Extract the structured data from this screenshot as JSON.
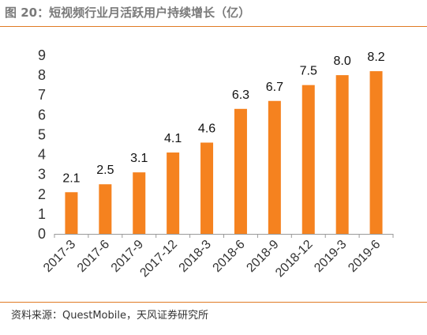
{
  "figure": {
    "title": "图 20：短视频行业月活跃用户持续增长（亿）",
    "source": "资料来源：QuestMobile，天风证券研究所"
  },
  "chart_data": {
    "type": "bar",
    "title": "图 20：短视频行业月活跃用户持续增长（亿）",
    "xlabel": "",
    "ylabel": "",
    "categories": [
      "2017-3",
      "2017-6",
      "2017-9",
      "2017-12",
      "2018-3",
      "2018-6",
      "2018-9",
      "2018-12",
      "2019-3",
      "2019-6"
    ],
    "values": [
      2.1,
      2.5,
      3.1,
      4.1,
      4.6,
      6.3,
      6.7,
      7.5,
      8.0,
      8.2
    ],
    "value_labels": [
      "2.1",
      "2.5",
      "3.1",
      "4.1",
      "4.6",
      "6.3",
      "6.7",
      "7.5",
      "8.0",
      "8.2"
    ],
    "ylim": [
      0,
      9
    ],
    "yticks": [
      "0",
      "1",
      "2",
      "3",
      "4",
      "5",
      "6",
      "7",
      "8",
      "9"
    ],
    "grid": false,
    "legend": "none",
    "bar_color": "#f5821f",
    "accent_color": "#e07b24"
  }
}
